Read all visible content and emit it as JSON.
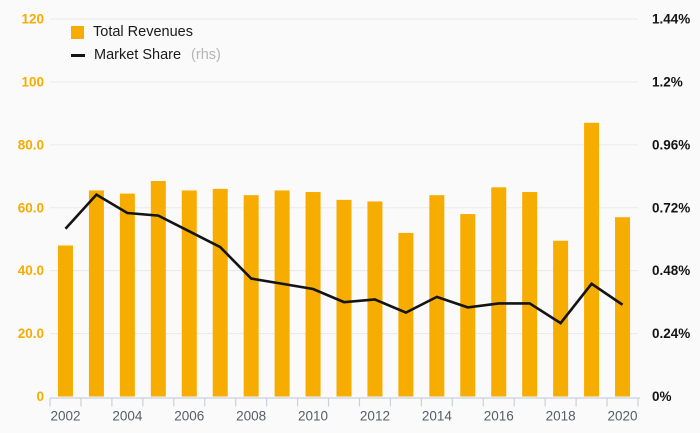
{
  "chart_data": {
    "type": "bar",
    "title": "",
    "categories": [
      "2002",
      "2003",
      "2004",
      "2005",
      "2006",
      "2007",
      "2008",
      "2009",
      "2010",
      "2011",
      "2012",
      "2013",
      "2014",
      "2015",
      "2016",
      "2017",
      "2018",
      "2019",
      "2020"
    ],
    "series": [
      {
        "name": "Total Revenues",
        "type": "bar",
        "yaxis": "left",
        "color": "#F7AC00",
        "values": [
          48,
          65.5,
          64.5,
          68.5,
          65.5,
          66,
          64,
          65.5,
          65,
          62.5,
          62,
          52,
          64,
          58,
          66.5,
          65,
          49.5,
          87,
          57
        ]
      },
      {
        "name": "Market Share",
        "type": "line",
        "yaxis": "right",
        "color": "#141414",
        "values": [
          0.64,
          0.77,
          0.7,
          0.69,
          0.63,
          0.57,
          0.45,
          0.43,
          0.41,
          0.36,
          0.37,
          0.32,
          0.38,
          0.34,
          0.355,
          0.355,
          0.28,
          0.43,
          0.35
        ]
      }
    ],
    "left_axis": {
      "min": 0,
      "max": 120,
      "tick_labels": [
        "120",
        "100",
        "80.0",
        "60.0",
        "40.0",
        "20.0",
        "0"
      ],
      "label_color": "#F7AC00"
    },
    "right_axis": {
      "min": 0,
      "max": 1.44,
      "tick_labels": [
        "1.44%",
        "1.2%",
        "0.96%",
        "0.72%",
        "0.48%",
        "0.24%",
        "0%"
      ],
      "label_color": "#141414"
    },
    "x_axis": {
      "tick_labels": [
        "2002",
        "2004",
        "2006",
        "2008",
        "2010",
        "2012",
        "2014",
        "2016",
        "2018",
        "2020"
      ],
      "label_every": 2,
      "label_color": "#575d66"
    },
    "grid": true,
    "grid_color": "#e9e9e9",
    "axis_line_color": "#c9d1de",
    "background": "#fafafa",
    "legend_position": "top-left"
  },
  "legend": {
    "items": [
      {
        "label": "Total Revenues",
        "marker": "square"
      },
      {
        "label": "Market Share",
        "suffix": "(rhs)",
        "marker": "line"
      }
    ]
  }
}
